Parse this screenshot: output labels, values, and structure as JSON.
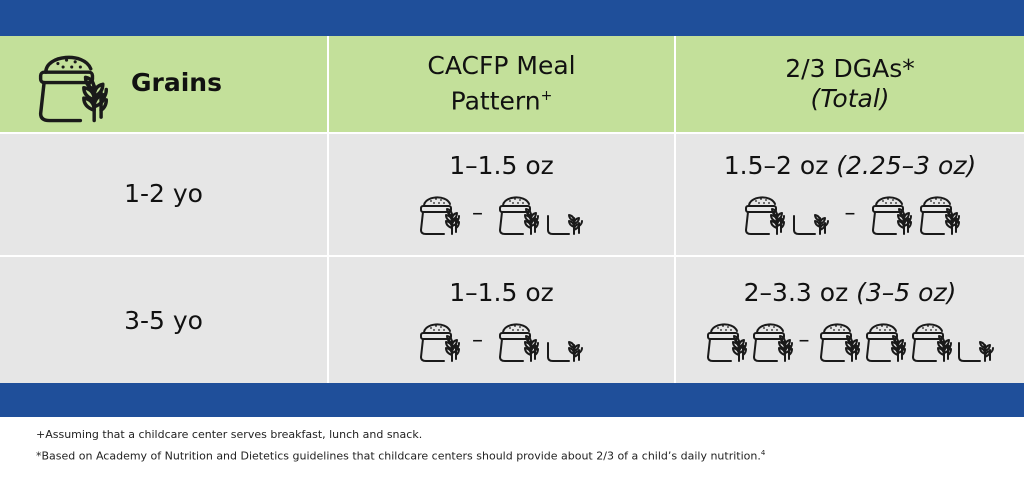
{
  "header": {
    "grains_label": "Grains",
    "cacfp_label": "CACFP Meal",
    "cacfp_label_line2": "Pattern",
    "cacfp_sup": "+",
    "dga_label": "2/3 DGAs*",
    "dga_total": "(Total)"
  },
  "rows": [
    {
      "age": "1-2 yo",
      "cacfp": "1–1.5 oz",
      "dga": "1.5–2 oz",
      "dga_total": "(2.25–3 oz)"
    },
    {
      "age": "3-5 yo",
      "cacfp": "1–1.5 oz",
      "dga": "2–3.3 oz",
      "dga_total": "(3–5 oz)"
    }
  ],
  "dash": "–",
  "footnotes": {
    "plus": "+Assuming that a childcare center serves breakfast, lunch and snack.",
    "star": "*Based on Academy of Nutrition and Dietetics guidelines that childcare centers should provide about 2/3 of a child’s daily nutrition.",
    "star_ref": "4"
  },
  "colors": {
    "band": "#1f4f9a",
    "header_row": "#c3e09a",
    "body_row": "#e6e6e6"
  },
  "icons": {
    "full": "grain-sack-icon",
    "half": "half-grain-sack-icon"
  }
}
